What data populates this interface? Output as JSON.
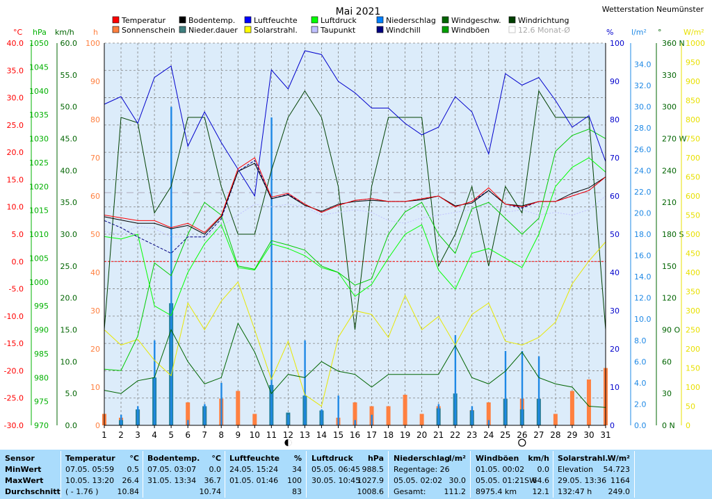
{
  "header": {
    "title": "Mai 2021",
    "station": "Wetterstation Neumünster"
  },
  "legend": [
    {
      "label": "Temperatur",
      "color": "#ff0000"
    },
    {
      "label": "Sonnenschein",
      "color": "#ff8040"
    },
    {
      "label": "Bodentemp.",
      "color": "#000000"
    },
    {
      "label": "Nieder.dauer",
      "color": "#408080"
    },
    {
      "label": "Luftfeuchte",
      "color": "#0000ff"
    },
    {
      "label": "Solarstrahl.",
      "color": "#ffff00"
    },
    {
      "label": "Luftdruck",
      "color": "#00ff00"
    },
    {
      "label": "Taupunkt",
      "color": "#c0c0ff"
    },
    {
      "label": "Niederschlag",
      "color": "#0080ff"
    },
    {
      "label": "Windchill",
      "color": "#000080"
    },
    {
      "label": "Windgeschw.",
      "color": "#006400"
    },
    {
      "label": "Windböen",
      "color": "#00a000"
    },
    {
      "label": "Windrichtung",
      "color": "#004000"
    },
    {
      "label": "12.6 Monat-Ø",
      "color": "#c8c8c8"
    }
  ],
  "axes": {
    "units": {
      "temp": "°C",
      "pressure": "hPa",
      "wind": "km/h",
      "sun": "h",
      "humidity": "%",
      "rain": "l/m²",
      "dir": "°",
      "solar": "W/m²"
    },
    "temp_ticks": [
      "40.0",
      "35.0",
      "30.0",
      "25.0",
      "20.0",
      "15.0",
      "10.0",
      "5.0",
      "0.0",
      "-5.0",
      "-10.0",
      "-15.0",
      "-20.0",
      "-25.0",
      "-30.0"
    ],
    "pressure_ticks": [
      "1050",
      "1045",
      "1040",
      "1035",
      "1030",
      "1025",
      "1020",
      "1015",
      "1010",
      "1005",
      "1000",
      "995",
      "990",
      "985",
      "980",
      "975",
      "970"
    ],
    "wind_ticks": [
      "60.0",
      "55.0",
      "50.0",
      "45.0",
      "40.0",
      "35.0",
      "30.0",
      "25.0",
      "20.0",
      "15.0",
      "10.0",
      "5.0",
      "0.0"
    ],
    "sun_ticks": [
      "100",
      "90",
      "80",
      "70",
      "60",
      "50",
      "40",
      "30",
      "20",
      "10",
      "0"
    ],
    "humidity_ticks": [
      "100",
      "90",
      "80",
      "70",
      "60",
      "50",
      "40",
      "30",
      "20",
      "10",
      "0"
    ],
    "rain_ticks": [
      "34.0",
      "32.0",
      "30.0",
      "28.0",
      "26.0",
      "24.0",
      "22.0",
      "20.0",
      "18.0",
      "16.0",
      "14.0",
      "12.0",
      "10.0",
      "8.0",
      "6.0",
      "4.0",
      "2.0",
      "0.0"
    ],
    "dir_ticks": [
      "360 N",
      "330",
      "300",
      "270 W",
      "240",
      "210",
      "180 S",
      "150",
      "120",
      "90 O",
      "60",
      "30",
      "0 N"
    ],
    "solar_ticks": [
      "1000",
      "950",
      "900",
      "850",
      "800",
      "750",
      "700",
      "650",
      "600",
      "550",
      "500",
      "450",
      "400",
      "350",
      "300",
      "250",
      "200",
      "150",
      "100",
      "50",
      "0"
    ],
    "x_ticks": [
      "1",
      "2",
      "3",
      "4",
      "5",
      "6",
      "7",
      "8",
      "9",
      "10",
      "11",
      "12",
      "13",
      "14",
      "15",
      "16",
      "17",
      "18",
      "19",
      "20",
      "21",
      "22",
      "23",
      "24",
      "25",
      "26",
      "27",
      "28",
      "29",
      "30",
      "31"
    ]
  },
  "chart_data": {
    "type": "line",
    "x": [
      1,
      2,
      3,
      4,
      5,
      6,
      7,
      8,
      9,
      10,
      11,
      12,
      13,
      14,
      15,
      16,
      17,
      18,
      19,
      20,
      21,
      22,
      23,
      24,
      25,
      26,
      27,
      28,
      29,
      30,
      31
    ],
    "series": [
      {
        "name": "Temperatur",
        "color": "#ff0000",
        "axis": "temp",
        "values": [
          8.5,
          8.0,
          7.5,
          7.5,
          6.2,
          7.0,
          5.3,
          8.4,
          17.0,
          19.0,
          11.8,
          12.5,
          10.5,
          9.0,
          10.3,
          11.2,
          11.5,
          11.0,
          11.0,
          11.5,
          12.0,
          10.0,
          11.0,
          13.5,
          10.5,
          10.0,
          11.0,
          11.0,
          12.0,
          13.0,
          15.5
        ]
      },
      {
        "name": "Bodentemp.",
        "color": "#000000",
        "axis": "temp",
        "values": [
          8.2,
          7.6,
          7.0,
          7.0,
          6.0,
          6.6,
          5.0,
          8.2,
          16.5,
          18.0,
          11.5,
          12.2,
          10.3,
          9.2,
          10.5,
          11.0,
          11.2,
          11.0,
          11.0,
          11.3,
          12.0,
          10.2,
          10.7,
          13.0,
          10.5,
          10.2,
          11.0,
          11.0,
          12.5,
          13.5,
          15.5
        ]
      },
      {
        "name": "Windchill",
        "color": "#000080",
        "axis": "temp",
        "values": [
          7.5,
          6.2,
          4.5,
          3.0,
          1.5,
          4.5,
          4.5,
          7.8,
          16.5,
          18.5,
          11.5,
          12.3,
          10.5,
          9.0,
          10.3,
          11.2,
          11.5,
          11.0,
          11.0,
          11.5,
          12.0,
          10.0,
          11.0,
          13.0,
          10.5,
          9.8,
          11.0,
          11.0,
          12.0,
          13.0,
          15.5
        ]
      },
      {
        "name": "Taupunkt",
        "color": "#c0c0ff",
        "axis": "temp",
        "values": [
          5.5,
          5.0,
          6.5,
          6.0,
          4.5,
          4.5,
          4.5,
          6.5,
          8.5,
          10.5,
          10.0,
          10.5,
          10.0,
          8.5,
          9.0,
          9.5,
          9.0,
          7.5,
          7.0,
          8.0,
          8.5,
          9.0,
          9.5,
          10.5,
          9.0,
          9.5,
          8.5,
          9.0,
          8.5,
          9.5,
          12.0
        ]
      },
      {
        "name": "Luftfeuchte",
        "color": "#0000cc",
        "axis": "humidity",
        "values": [
          84,
          86,
          79,
          91,
          94,
          73,
          82,
          74,
          67,
          60,
          93,
          88,
          98,
          97,
          90,
          87,
          83,
          83,
          79,
          76,
          78,
          86,
          82,
          71,
          92,
          89,
          91,
          85,
          78,
          81,
          69
        ]
      },
      {
        "name": "Luftdruck",
        "color": "#00ff00",
        "axis": "pressure",
        "values": [
          1009.5,
          1009.0,
          1010.0,
          995.0,
          993.0,
          1002.0,
          1008.0,
          1012.0,
          1003.0,
          1002.5,
          1008.0,
          1007.0,
          1005.5,
          1003.0,
          1002.0,
          997.0,
          999.5,
          1005.0,
          1010.0,
          1012.0,
          1002.5,
          998.5,
          1006.0,
          1007.0,
          1005.0,
          1003.0,
          1010.0,
          1020.0,
          1024.0,
          1026.0,
          1023.0
        ]
      },
      {
        "name": "Windgeschw.",
        "color": "#006400",
        "axis": "wind",
        "values": [
          5.5,
          5.0,
          7.0,
          7.5,
          15.0,
          10.0,
          6.5,
          7.5,
          16.0,
          11.5,
          5.0,
          8.0,
          7.5,
          10.0,
          8.5,
          8.0,
          6.0,
          8.0,
          8.0,
          8.0,
          8.0,
          12.5,
          7.5,
          6.5,
          8.5,
          11.5,
          7.5,
          6.5,
          6.0,
          3.0,
          2.8
        ]
      },
      {
        "name": "Windböen",
        "color": "#00cc00",
        "axis": "wind",
        "values": [
          8.8,
          8.6,
          14.0,
          25.5,
          23.5,
          30.0,
          35.0,
          33.0,
          25.0,
          24.5,
          29.0,
          28.3,
          27.5,
          25.0,
          24.0,
          22.0,
          23.0,
          30.0,
          33.5,
          35.0,
          30.0,
          27.0,
          34.0,
          35.0,
          32.5,
          30.0,
          32.5,
          43.0,
          45.5,
          46.5,
          45.0
        ]
      },
      {
        "name": "Windrichtung",
        "color": "#004000",
        "axis": "dir",
        "values": [
          90,
          290,
          285,
          200,
          225,
          290,
          290,
          225,
          180,
          180,
          240,
          290,
          315,
          290,
          225,
          90,
          225,
          290,
          290,
          290,
          150,
          180,
          225,
          150,
          225,
          200,
          315,
          290,
          290,
          290,
          90
        ]
      },
      {
        "name": "Solarstrahl.",
        "color": "#e8e800",
        "axis": "solar",
        "values": [
          250,
          210,
          225,
          170,
          130,
          320,
          250,
          325,
          375,
          250,
          120,
          220,
          80,
          50,
          230,
          300,
          290,
          230,
          340,
          250,
          285,
          210,
          290,
          320,
          220,
          210,
          230,
          270,
          370,
          430,
          480
        ]
      }
    ],
    "bars": [
      {
        "name": "Sonnenschein",
        "color": "#ff8040",
        "axis": "sun",
        "values": [
          3,
          2,
          4,
          0,
          0,
          6,
          5,
          7,
          9,
          3,
          0,
          3,
          0,
          1,
          2,
          6,
          5,
          5,
          8,
          3,
          5,
          4,
          4,
          6,
          7,
          7,
          7,
          3,
          9,
          12,
          15
        ]
      },
      {
        "name": "Niederschlag",
        "color": "#1e88e5",
        "axis": "rain",
        "values": [
          0,
          1,
          1.8,
          8,
          30,
          0.5,
          2,
          4,
          0,
          0,
          29,
          1,
          8,
          1.5,
          2.8,
          0.5,
          1,
          0,
          0,
          0,
          2,
          8.5,
          1.8,
          0.5,
          7,
          7,
          6.5,
          0,
          0,
          0,
          0
        ]
      },
      {
        "name": "Nieder.dauer",
        "color": "#2080a0",
        "axis": "rain",
        "values": [
          0,
          0.5,
          1.5,
          4.5,
          11.5,
          0,
          1.8,
          0,
          0,
          0,
          3.8,
          1.2,
          2.8,
          1.4,
          0,
          0,
          0,
          0,
          0,
          0,
          1.6,
          3.0,
          1.4,
          0,
          2.5,
          1.5,
          2.5,
          0,
          0,
          0,
          0
        ]
      }
    ],
    "month_avg": {
      "label": "12.6 Monat-Ø",
      "value": 12.6
    },
    "moon": [
      {
        "day": 12,
        "phase": "new"
      },
      {
        "day": 26,
        "phase": "full"
      }
    ]
  },
  "stats": {
    "sensor": {
      "title": "Sensor",
      "rows": [
        "MinWert",
        "MaxWert",
        "Durchschnitt"
      ]
    },
    "temperature": {
      "title": "Temperatur",
      "unit": "°C",
      "min_when": "07.05.  05:59",
      "min": "0.5",
      "max_when": "10.05.  13:20",
      "max": "26.4",
      "avg_note": "( - 1.76 )",
      "avg": "10.84"
    },
    "soil": {
      "title": "Bodentemp.",
      "unit": "°C",
      "min_when": "07.05.  03:07",
      "min": "0.0",
      "max_when": "31.05.  13:34",
      "max": "36.7",
      "avg": "10.74"
    },
    "humidity": {
      "title": "Luftfeuchte",
      "unit": "%",
      "min_when": "24.05.  15:24",
      "min": "34",
      "max_when": "01.05.  01:46",
      "max": "100",
      "avg": "83"
    },
    "pressure": {
      "title": "Luftdruck",
      "unit": "hPa",
      "min_when": "05.05.  06:45",
      "min": "988.5",
      "max_when": "30.05.  10:45",
      "max": "1027.9",
      "avg": "1008.6"
    },
    "rain": {
      "title": "Niederschlag",
      "unit": "l/m²",
      "r1": "Regentage: 26",
      "r1v": "",
      "r2": "05.05.  02:02",
      "r2v": "30.0",
      "r3": "Gesamt:",
      "r3v": "111.2"
    },
    "gust": {
      "title": "Windböen",
      "unit": "km/h",
      "r1": "01.05.  00:02",
      "r1v": "0.0",
      "r2": "05.05.  01:21SW",
      "r2v": "64.6",
      "r3": "8975.4 km",
      "r3v": "12.1"
    },
    "solar": {
      "title": "Solarstrahl.",
      "unit": "W/m²",
      "r1": "Elevation",
      "r1v": "54.723",
      "r2": "29.05.  13:36",
      "r2v": "1164",
      "r3": "132:47 h",
      "r3v": "249.0"
    }
  }
}
